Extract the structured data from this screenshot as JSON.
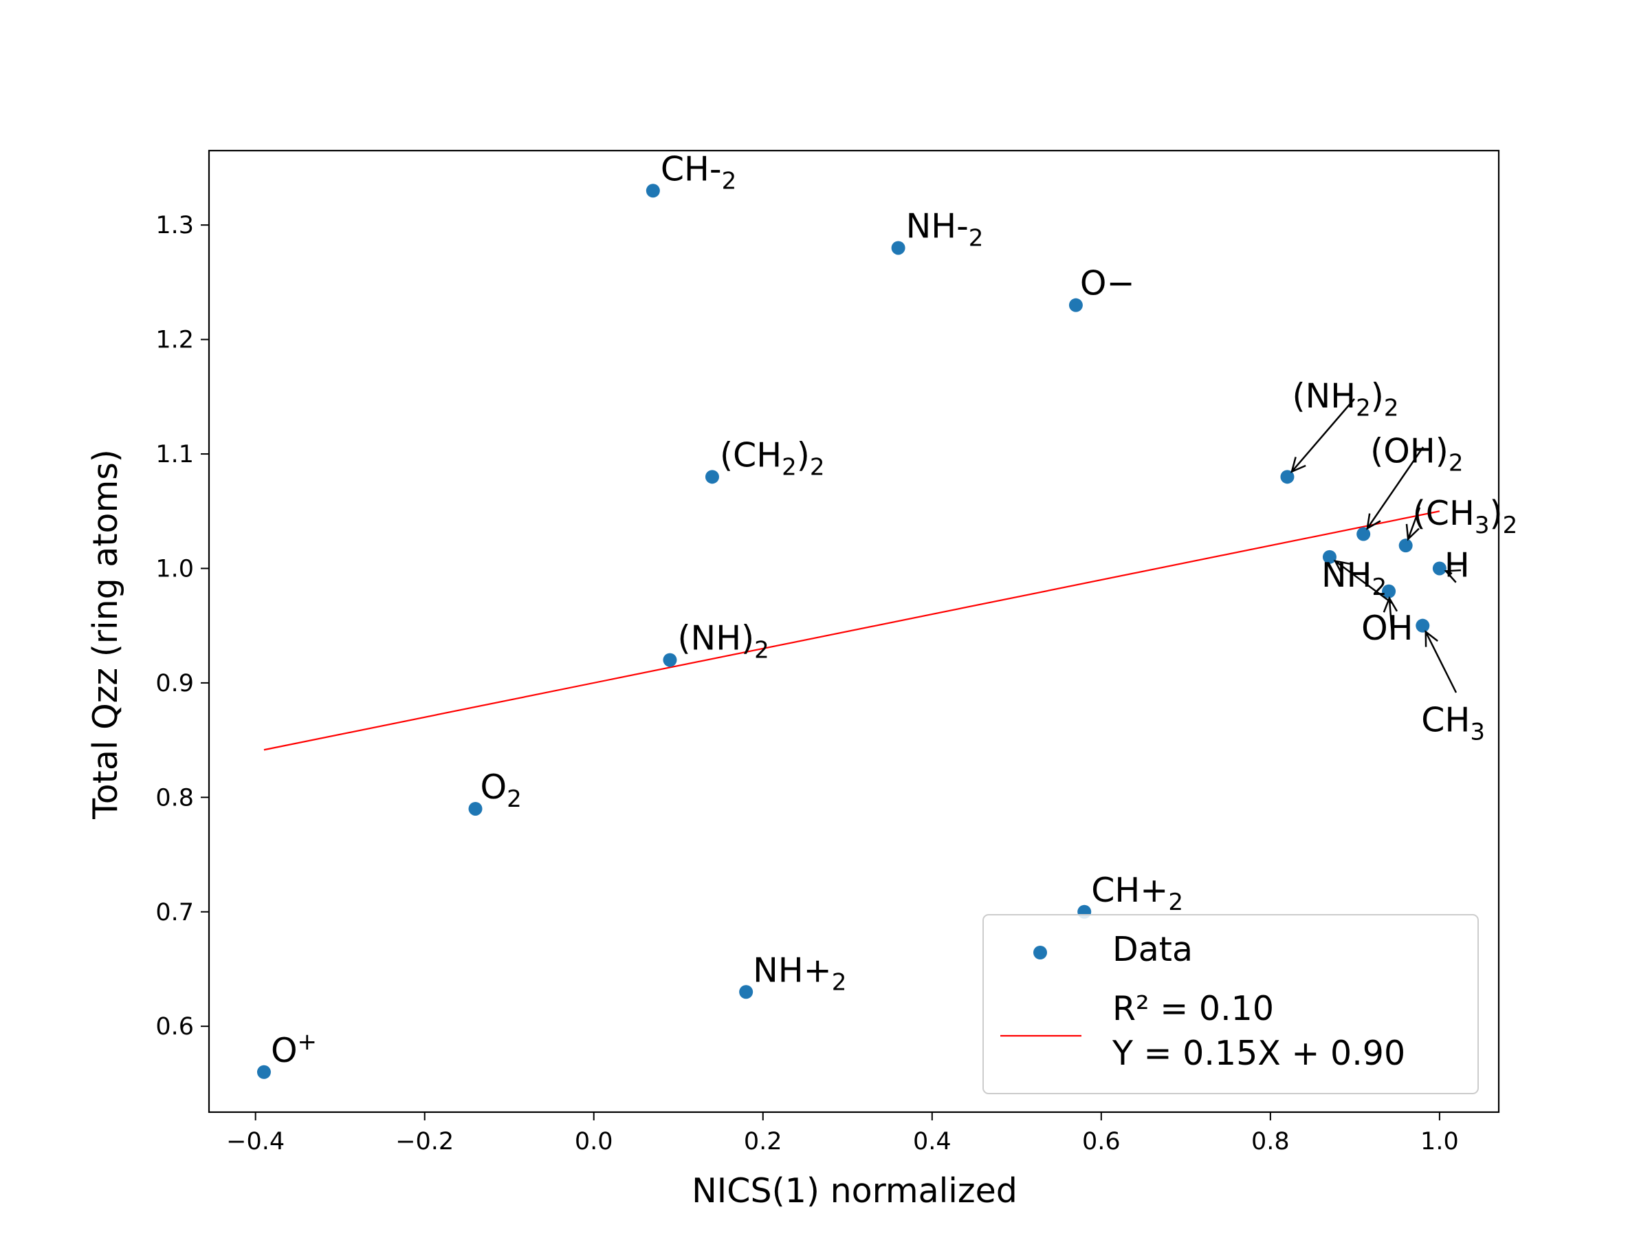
{
  "chart_data": {
    "type": "scatter",
    "xlabel": "NICS(1) normalized",
    "ylabel": "Total Qzz (ring atoms)",
    "xlim": [
      -0.455,
      1.07
    ],
    "ylim": [
      0.525,
      1.365
    ],
    "grid": false,
    "x_ticks": [
      -0.4,
      -0.2,
      0.0,
      0.2,
      0.4,
      0.6,
      0.8,
      1.0
    ],
    "x_tick_labels": [
      "−0.4",
      "−0.2",
      "0.0",
      "0.2",
      "0.4",
      "0.6",
      "0.8",
      "1.0"
    ],
    "y_ticks": [
      0.6,
      0.7,
      0.8,
      0.9,
      1.0,
      1.1,
      1.2,
      1.3
    ],
    "y_tick_labels": [
      "0.6",
      "0.7",
      "0.8",
      "0.9",
      "1.0",
      "1.1",
      "1.2",
      "1.3"
    ],
    "colors": {
      "points": "#1f77b4",
      "fit": "#ff0000"
    },
    "points": [
      {
        "x": 0.07,
        "y": 1.33,
        "label": "CH-",
        "sub": "2"
      },
      {
        "x": 0.36,
        "y": 1.28,
        "label": "NH-",
        "sub": "2"
      },
      {
        "x": 0.57,
        "y": 1.23,
        "label": "O−",
        "sub": ""
      },
      {
        "x": 0.14,
        "y": 1.08,
        "label": "(CH",
        "sub": "2",
        "after": ")",
        "sub2": "2"
      },
      {
        "x": 0.82,
        "y": 1.08,
        "label": "(NH",
        "sub": "2",
        "after": ")",
        "sub2": "2"
      },
      {
        "x": 0.91,
        "y": 1.03,
        "label": "(OH)",
        "sub": "2"
      },
      {
        "x": 0.96,
        "y": 1.02,
        "label": "(CH",
        "sub": "3",
        "after": ")",
        "sub2": "2"
      },
      {
        "x": 0.87,
        "y": 1.01,
        "label": "NH",
        "sub": "2"
      },
      {
        "x": 1.0,
        "y": 1.0,
        "label": "H",
        "sub": ""
      },
      {
        "x": 0.94,
        "y": 0.98,
        "label": "OH",
        "sub": ""
      },
      {
        "x": 0.98,
        "y": 0.95,
        "label": "CH",
        "sub": "3"
      },
      {
        "x": 0.09,
        "y": 0.92,
        "label": "(NH)",
        "sub": "2"
      },
      {
        "x": -0.14,
        "y": 0.79,
        "label": "O",
        "sub": "2"
      },
      {
        "x": 0.58,
        "y": 0.7,
        "label": "CH+",
        "sub": "2"
      },
      {
        "x": 0.18,
        "y": 0.63,
        "label": "NH+",
        "sub": "2"
      },
      {
        "x": -0.39,
        "y": 0.56,
        "label": "O",
        "sup": "+"
      }
    ],
    "fit": {
      "slope": 0.15,
      "intercept": 0.9,
      "x_range": [
        -0.39,
        1.0
      ]
    },
    "legend": {
      "position": "lower right",
      "entries": [
        "Data",
        "R² = 0.10",
        "Y = 0.15X + 0.90"
      ]
    }
  }
}
